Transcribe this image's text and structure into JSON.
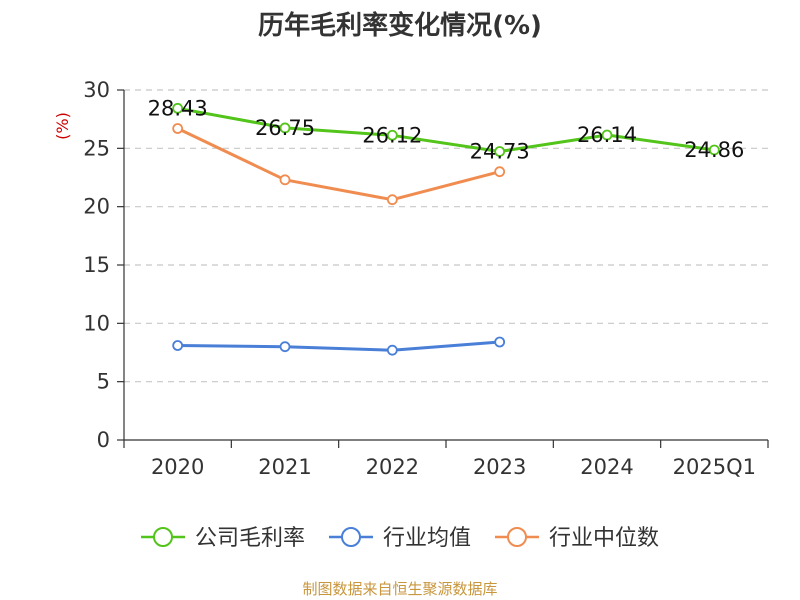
{
  "chart_data": {
    "type": "line",
    "title": "历年毛利率变化情况(%)",
    "unit_label": "(%)",
    "categories": [
      "2020",
      "2021",
      "2022",
      "2023",
      "2024",
      "2025Q1"
    ],
    "ylim": [
      0,
      30
    ],
    "yticks": [
      0,
      5,
      10,
      15,
      20,
      25,
      30
    ],
    "grid": true,
    "legend_position": "bottom",
    "series": [
      {
        "name": "公司毛利率",
        "color": "#52c41a",
        "values": [
          28.43,
          26.75,
          26.12,
          24.73,
          26.14,
          24.86
        ],
        "labels": [
          "28.43",
          "26.75",
          "26.12",
          "24.73",
          "26.14",
          "24.86"
        ]
      },
      {
        "name": "行业均值",
        "color": "#4a7fd8",
        "values": [
          8.1,
          8.0,
          7.7,
          8.4,
          null,
          null
        ]
      },
      {
        "name": "行业中位数",
        "color": "#f08c50",
        "values": [
          26.7,
          22.3,
          20.6,
          23.0,
          null,
          null
        ]
      }
    ],
    "source": "制图数据来自恒生聚源数据库"
  }
}
